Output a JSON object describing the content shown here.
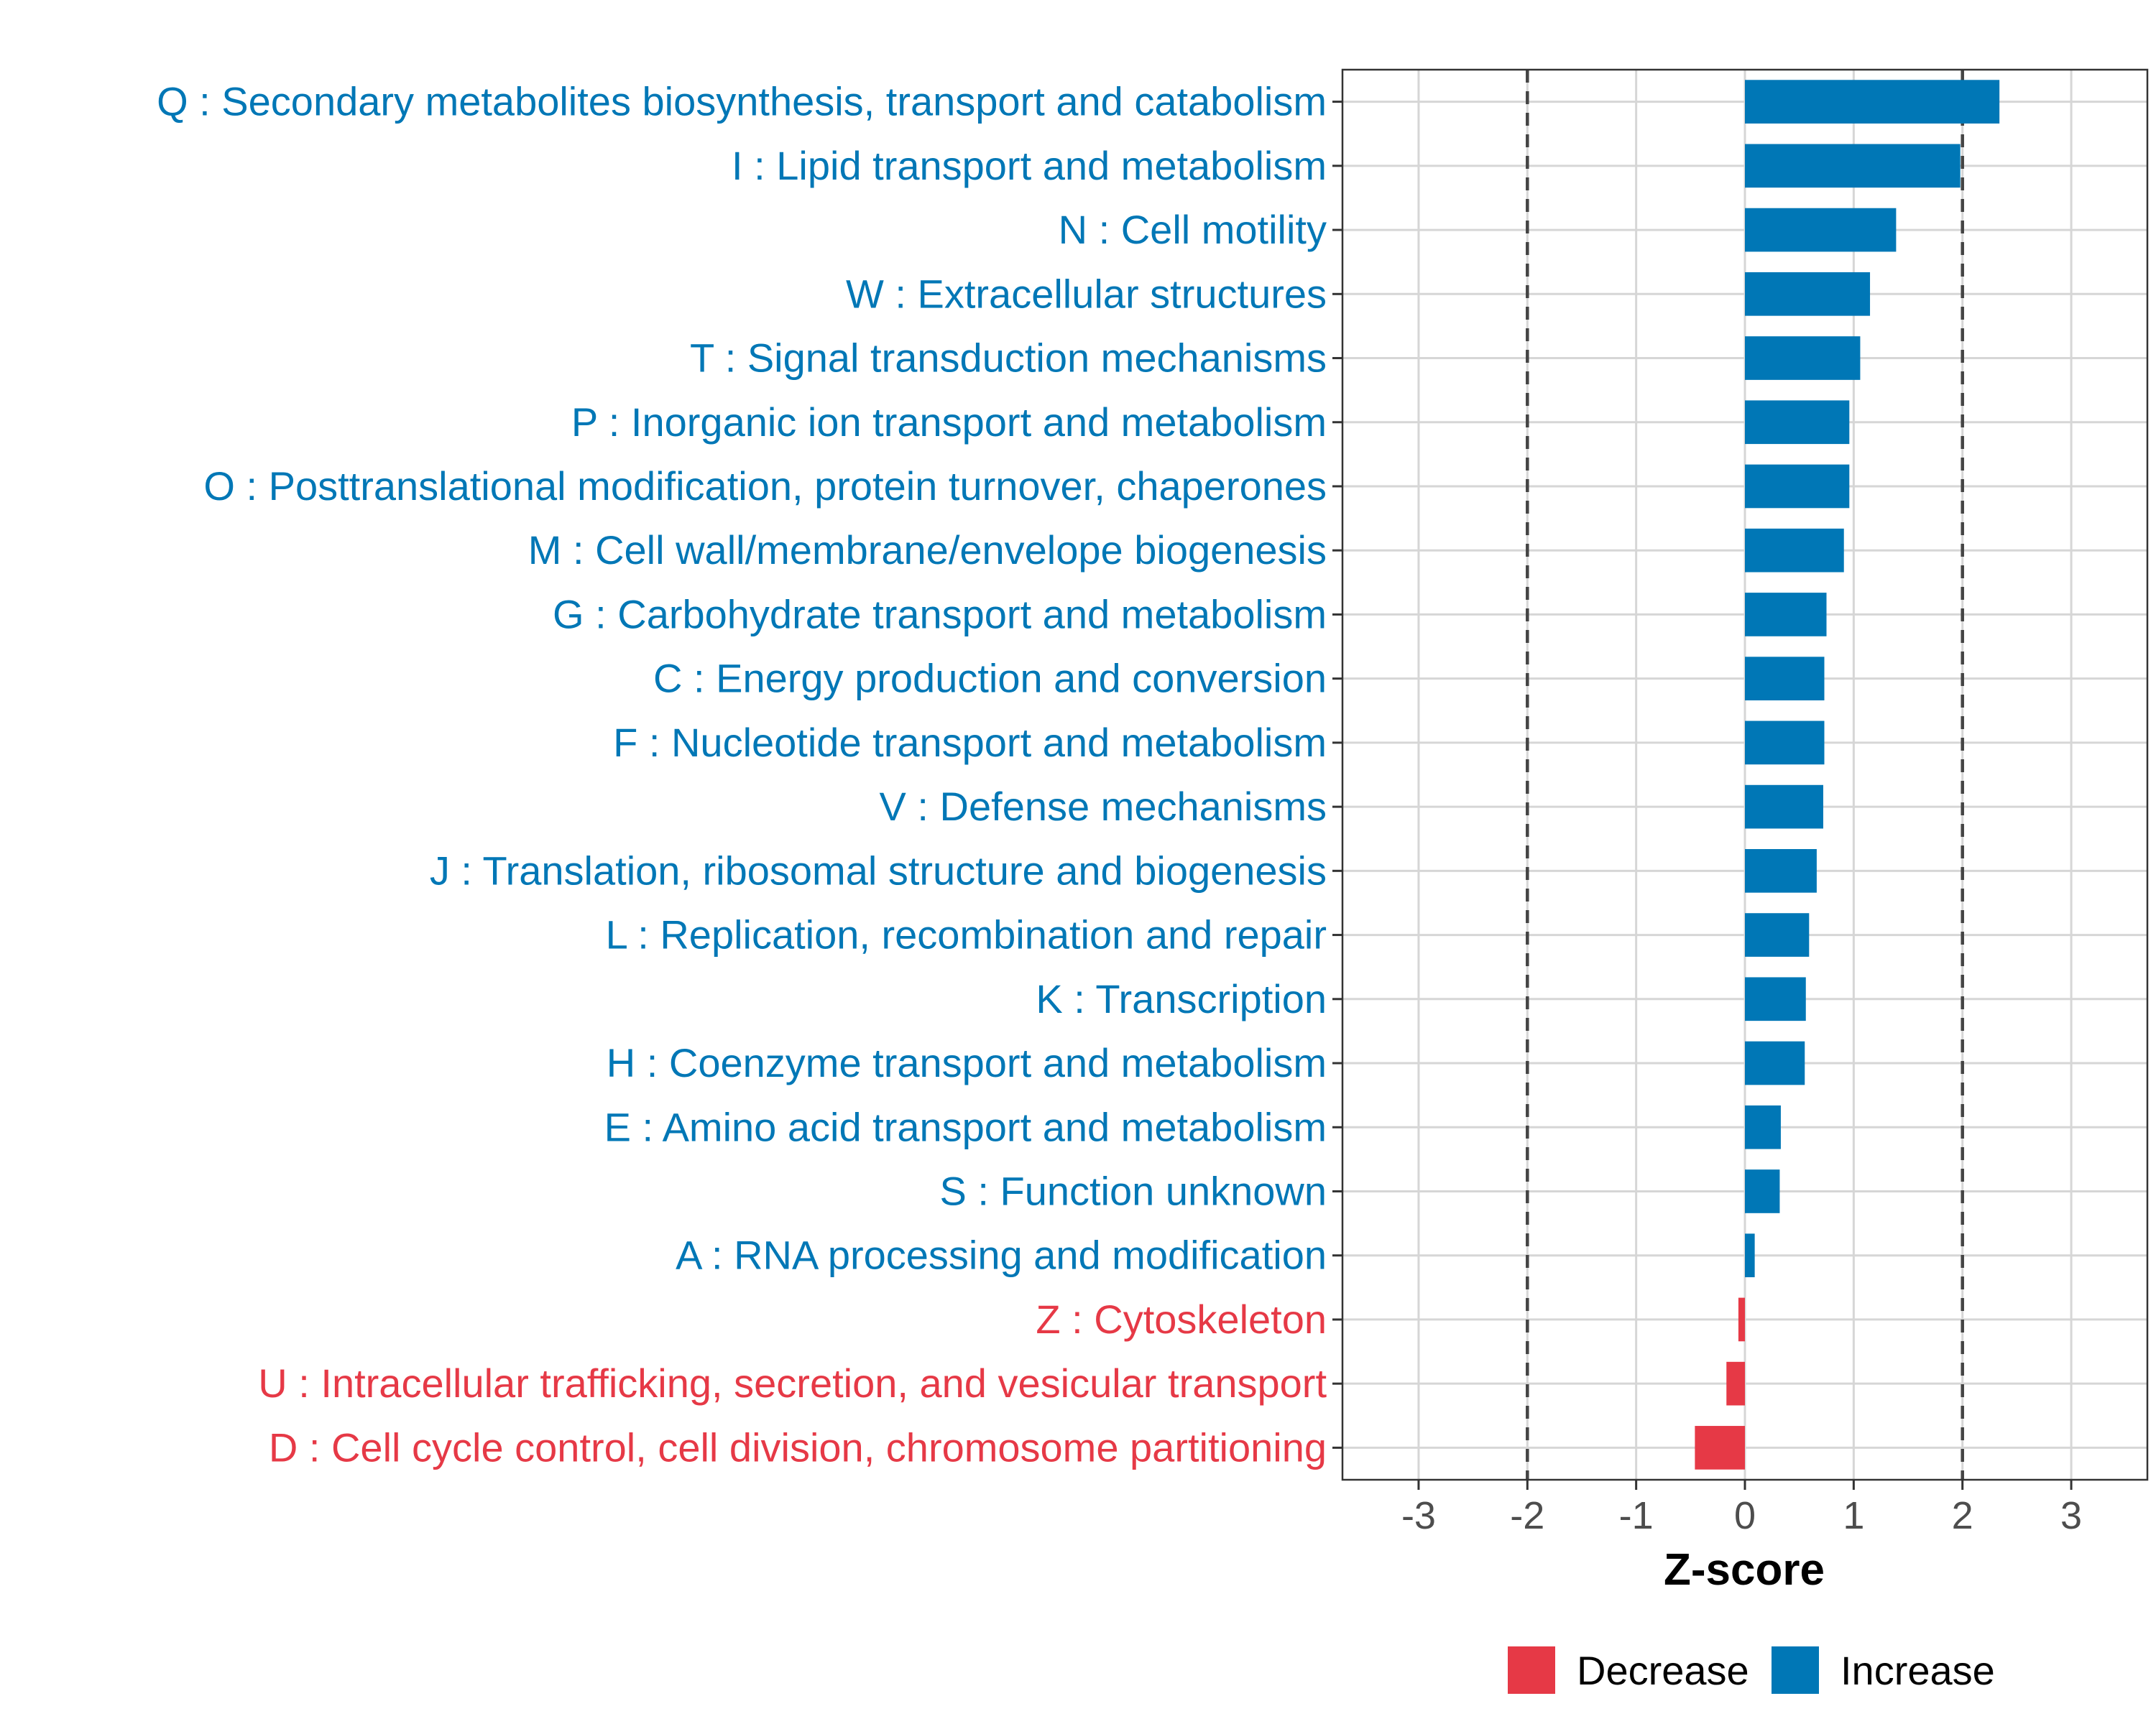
{
  "chart_data": {
    "type": "bar",
    "orientation": "horizontal",
    "xlabel": "Z-score",
    "xlim": [
      -3.7,
      3.7
    ],
    "xticks": [
      -3,
      -2,
      -1,
      0,
      1,
      2,
      3
    ],
    "xtick_labels": [
      "-3",
      "-2",
      "-1",
      "0",
      "1",
      "2",
      "3"
    ],
    "reference_lines": [
      -2,
      2
    ],
    "grid": true,
    "legend_position": "bottom",
    "colors": {
      "Decrease": "#E63946",
      "Increase": "#0077B6"
    },
    "legend": [
      {
        "label": "Decrease",
        "color": "#E63946"
      },
      {
        "label": "Increase",
        "color": "#0077B6"
      }
    ],
    "bars": [
      {
        "label": "Q : Secondary metabolites biosynthesis, transport and catabolism",
        "value": 2.34,
        "group": "Increase"
      },
      {
        "label": "I : Lipid transport and metabolism",
        "value": 1.98,
        "group": "Increase"
      },
      {
        "label": "N : Cell motility",
        "value": 1.39,
        "group": "Increase"
      },
      {
        "label": "W : Extracellular structures",
        "value": 1.15,
        "group": "Increase"
      },
      {
        "label": "T : Signal transduction mechanisms",
        "value": 1.06,
        "group": "Increase"
      },
      {
        "label": "P : Inorganic ion transport and metabolism",
        "value": 0.96,
        "group": "Increase"
      },
      {
        "label": "O : Posttranslational modification, protein turnover, chaperones",
        "value": 0.96,
        "group": "Increase"
      },
      {
        "label": "M : Cell wall/membrane/envelope biogenesis",
        "value": 0.91,
        "group": "Increase"
      },
      {
        "label": "G : Carbohydrate transport and metabolism",
        "value": 0.75,
        "group": "Increase"
      },
      {
        "label": "C : Energy production and conversion",
        "value": 0.73,
        "group": "Increase"
      },
      {
        "label": "F : Nucleotide transport and metabolism",
        "value": 0.73,
        "group": "Increase"
      },
      {
        "label": "V : Defense mechanisms",
        "value": 0.72,
        "group": "Increase"
      },
      {
        "label": "J : Translation, ribosomal structure and biogenesis",
        "value": 0.66,
        "group": "Increase"
      },
      {
        "label": "L : Replication, recombination and repair",
        "value": 0.59,
        "group": "Increase"
      },
      {
        "label": "K : Transcription",
        "value": 0.56,
        "group": "Increase"
      },
      {
        "label": "H : Coenzyme transport and metabolism",
        "value": 0.55,
        "group": "Increase"
      },
      {
        "label": "E : Amino acid transport and metabolism",
        "value": 0.33,
        "group": "Increase"
      },
      {
        "label": "S : Function unknown",
        "value": 0.32,
        "group": "Increase"
      },
      {
        "label": "A : RNA processing and modification",
        "value": 0.09,
        "group": "Increase"
      },
      {
        "label": "Z : Cytoskeleton",
        "value": -0.06,
        "group": "Decrease"
      },
      {
        "label": "U : Intracellular trafficking, secretion, and vesicular transport",
        "value": -0.17,
        "group": "Decrease"
      },
      {
        "label": "D : Cell cycle control, cell division, chromosome partitioning",
        "value": -0.46,
        "group": "Decrease"
      }
    ]
  }
}
